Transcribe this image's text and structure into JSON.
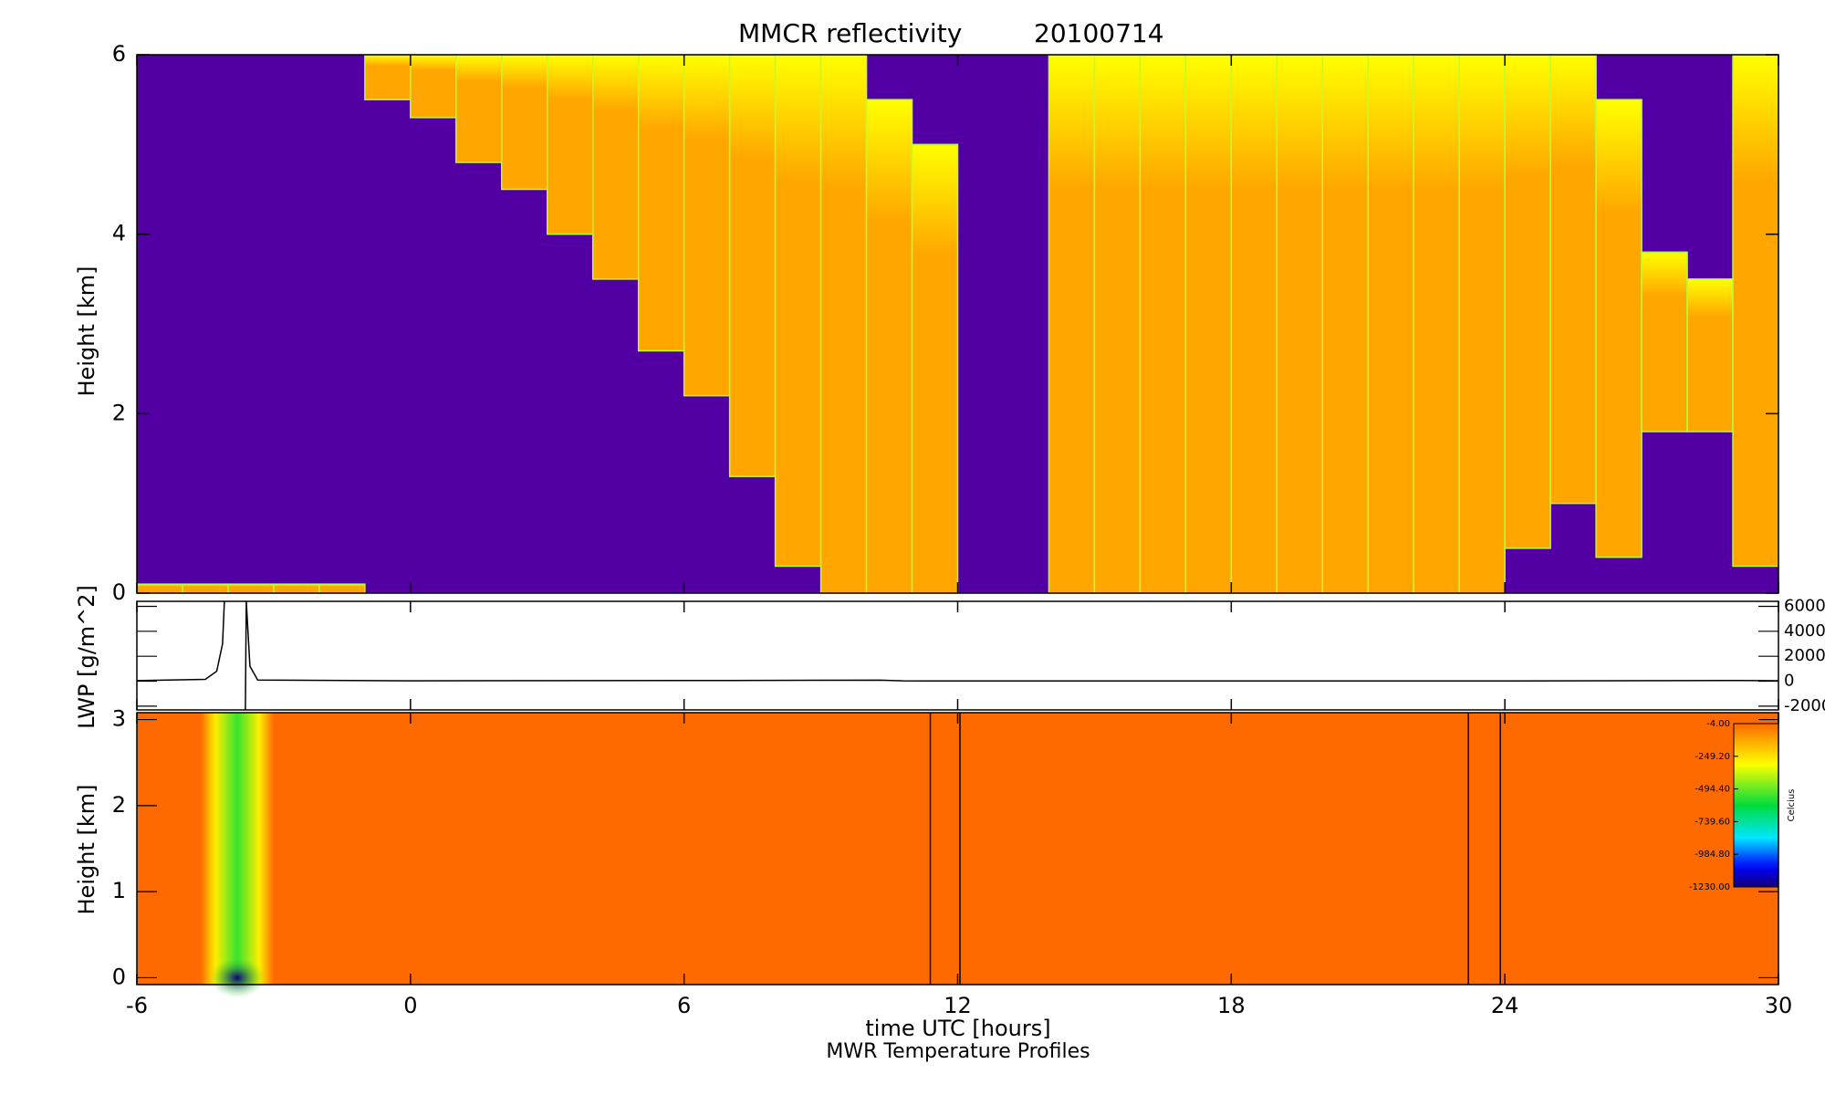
{
  "chart_data": [
    {
      "type": "cloud_mask",
      "title": "MMCR reflectivity",
      "date": "20100714",
      "y_label": "Height [km]",
      "xlim": [
        -6,
        30
      ],
      "ylim": [
        0,
        6
      ],
      "yticks": [
        0,
        2,
        4,
        6
      ],
      "bins": [
        -6,
        -5,
        -4,
        -3,
        -2,
        -1,
        0,
        1,
        2,
        3,
        4,
        5,
        6,
        7,
        8,
        9,
        10,
        11,
        12,
        13,
        14,
        15,
        16,
        17,
        18,
        19,
        20,
        21,
        22,
        23,
        24,
        25,
        26,
        27,
        28,
        29,
        30
      ],
      "cloud_base": [
        0,
        0,
        0,
        0,
        0,
        5.5,
        5.3,
        4.8,
        4.5,
        4.0,
        3.5,
        2.7,
        2.2,
        1.3,
        0.3,
        0,
        0,
        0,
        null,
        null,
        0,
        0,
        0,
        0,
        0,
        0,
        0,
        0,
        0,
        0,
        0.5,
        1.0,
        0.4,
        1.8,
        1.8,
        0.3
      ],
      "cloud_top": [
        0.1,
        0.1,
        0.1,
        0.1,
        0.1,
        6,
        6,
        6,
        6,
        6,
        6,
        6,
        6,
        6,
        6,
        6,
        5.5,
        5.0,
        null,
        null,
        6,
        6,
        6,
        6,
        6,
        6,
        6,
        6,
        6,
        6,
        6,
        6,
        5.5,
        3.8,
        3.5,
        6
      ],
      "background_color": "#5200a4",
      "cloud_color": "#ffa600",
      "edge_color": "#ffff00"
    },
    {
      "type": "line",
      "y_label": "LWP [g/m^2]",
      "xlim": [
        -6,
        30
      ],
      "y2lim": [
        -2300,
        6400
      ],
      "y2ticks": [
        6000,
        4000,
        2000,
        0,
        -2000
      ],
      "color": "#000000",
      "axis": "y2",
      "x": [
        -6,
        -4.5,
        -4.25,
        -4.12,
        -4.08,
        null,
        -3.62,
        -3.6,
        -3.52,
        -3.35,
        0,
        7,
        10.3,
        10.8,
        12,
        24,
        29,
        30
      ],
      "values": [
        50,
        150,
        800,
        3000,
        6400,
        null,
        -2300,
        6400,
        1200,
        100,
        30,
        60,
        80,
        30,
        20,
        20,
        60,
        40
      ]
    },
    {
      "type": "heatmap",
      "y_label": "Height [km]",
      "x_label": "time UTC [hours]",
      "caption": "MWR Temperature Profiles",
      "xlim": [
        -6,
        30
      ],
      "xticks": [
        -6,
        0,
        6,
        12,
        18,
        24,
        30
      ],
      "ylim": [
        -0.08,
        3.08
      ],
      "yticks": [
        0,
        1,
        2,
        3
      ],
      "clim": [
        -1230,
        -4
      ],
      "background_value": -4,
      "cold_band": {
        "x": [
          -4.6,
          -3.0
        ],
        "value": -550
      },
      "cold_spot": {
        "x": -3.8,
        "y": 0,
        "value": -1230
      },
      "missing_times": [
        11.4,
        12.05,
        23.2,
        23.9
      ],
      "colorbar": {
        "label": "Celcius",
        "ticks": [
          {
            "value": -4,
            "label": "-4.00"
          },
          {
            "value": -249.2,
            "label": "-249.20"
          },
          {
            "value": -494.4,
            "label": "-494.40"
          },
          {
            "value": -739.6,
            "label": "-739.60"
          },
          {
            "value": -984.8,
            "label": "-984.80"
          },
          {
            "value": -1230,
            "label": "-1230.00"
          }
        ]
      }
    }
  ]
}
